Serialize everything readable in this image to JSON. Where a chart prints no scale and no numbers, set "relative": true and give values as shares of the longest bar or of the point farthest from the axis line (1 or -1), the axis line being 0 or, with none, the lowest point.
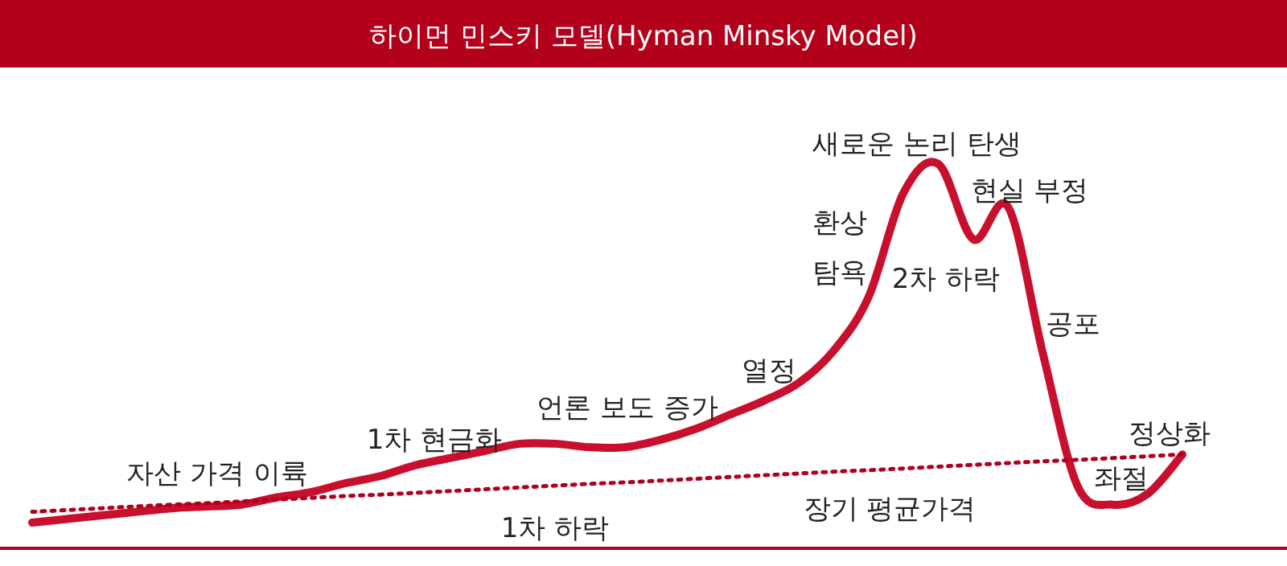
{
  "chart_data": {
    "type": "line",
    "title": "하이먼 민스키 모델(Hyman Minsky Model)",
    "relative": true,
    "categories": [
      null,
      null,
      null,
      null,
      null,
      null,
      null,
      null,
      null,
      null,
      null,
      null,
      null,
      null,
      null,
      null,
      null,
      null,
      null,
      null,
      null,
      null,
      null,
      null,
      null,
      null,
      null,
      null,
      null,
      null,
      null,
      null,
      null,
      null
    ],
    "series": [
      {
        "color": "#c8102e",
        "line_style": "solid",
        "values": [
          0,
          0.01,
          0.02,
          0.03,
          0.04,
          0.045,
          0.05,
          0.07,
          0.085,
          0.11,
          0.13,
          0.16,
          0.18,
          0.2,
          0.22,
          0.22,
          0.21,
          0.21,
          0.23,
          0.26,
          0.3,
          0.34,
          0.39,
          0.48,
          0.63,
          0.92,
          1,
          0.79,
          0.88,
          0.47,
          0.1,
          0.05,
          0.08,
          0.19
        ]
      },
      {
        "name": "장기 평균가격",
        "type": "line",
        "color": "#b0001e",
        "line_style": "dotted",
        "values": [
          0.03,
          0.035,
          0.04,
          0.045,
          0.05,
          0.054,
          0.059,
          0.064,
          0.069,
          0.074,
          0.078,
          0.083,
          0.088,
          0.093,
          0.098,
          0.103,
          0.108,
          0.112,
          0.117,
          0.122,
          0.127,
          0.132,
          0.137,
          0.142,
          0.146,
          0.151,
          0.156,
          0.161,
          0.166,
          0.171,
          0.175,
          0.18,
          0.185,
          0.19
        ]
      }
    ],
    "annotations": [
      "자산 가격 이륙",
      "1차 현금화",
      "1차 하락",
      "언론 보도 증가",
      "열정",
      "환상",
      "탐욕",
      "새로운 논리 탄생",
      "2차 하락",
      "현실 부정",
      "공포",
      "좌절",
      "정상화"
    ]
  }
}
